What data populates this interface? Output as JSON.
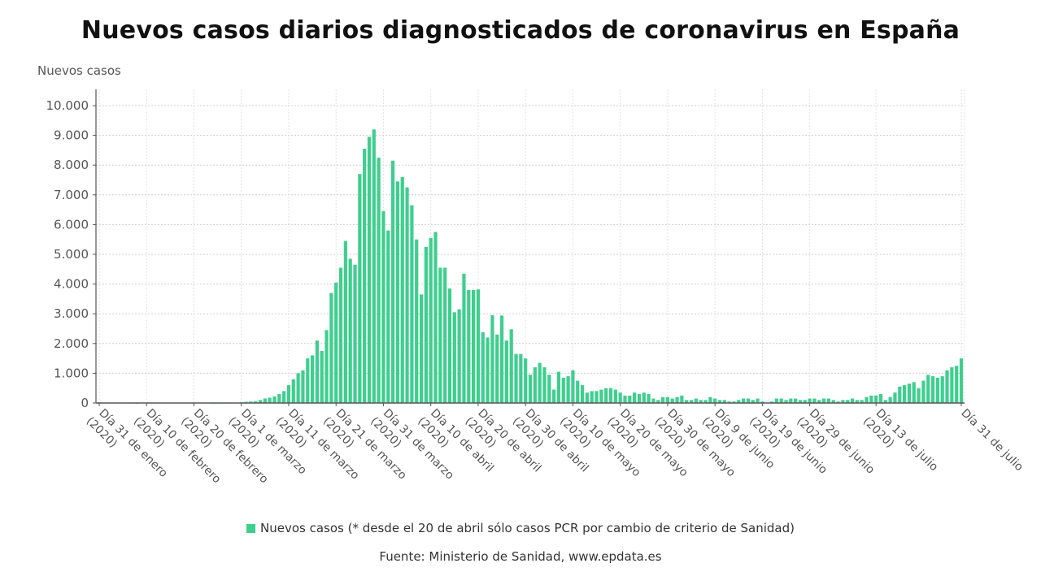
{
  "title": "Nuevos casos diarios diagnosticados de coronavirus en España",
  "y_axis_label": "Nuevos casos",
  "legend": {
    "label": "Nuevos casos (* desde el 20 de abril sólo casos PCR por cambio de criterio de Sanidad)",
    "color": "#3ecf8e"
  },
  "source": "Fuente: Ministerio de Sanidad, www.epdata.es",
  "chart_data": {
    "type": "bar",
    "title": "Nuevos casos diarios diagnosticados de coronavirus en España",
    "xlabel": "",
    "ylabel": "Nuevos casos",
    "ylim": [
      0,
      10000
    ],
    "yticks": [
      "0",
      "1.000",
      "2.000",
      "3.000",
      "4.000",
      "5.000",
      "6.000",
      "7.000",
      "8.000",
      "9.000",
      "10.000"
    ],
    "grid": true,
    "legend_position": "bottom",
    "start_date": "2020-01-31",
    "end_date": "2020-07-31",
    "x_tick_labels": [
      {
        "day": 0,
        "line1": "Día 31 de enero",
        "line2": "(2020)"
      },
      {
        "day": 10,
        "line1": "Día 10 de febrero",
        "line2": "(2020)"
      },
      {
        "day": 20,
        "line1": "Día 20 de febrero",
        "line2": "(2020)"
      },
      {
        "day": 30,
        "line1": "Día 1 de marzo",
        "line2": "(2020)"
      },
      {
        "day": 40,
        "line1": "Día 11 de marzo",
        "line2": "(2020)"
      },
      {
        "day": 50,
        "line1": "Día 21 de marzo",
        "line2": "(2020)"
      },
      {
        "day": 60,
        "line1": "Día 31 de marzo",
        "line2": "(2020)"
      },
      {
        "day": 70,
        "line1": "Día 10 de abril",
        "line2": "(2020)"
      },
      {
        "day": 80,
        "line1": "Día 20 de abril",
        "line2": "(2020)"
      },
      {
        "day": 90,
        "line1": "Día 30 de abril",
        "line2": "(2020)"
      },
      {
        "day": 100,
        "line1": "Día 10 de mayo",
        "line2": "(2020)"
      },
      {
        "day": 110,
        "line1": "Día 20 de mayo",
        "line2": "(2020)"
      },
      {
        "day": 120,
        "line1": "Día 30 de mayo",
        "line2": "(2020)"
      },
      {
        "day": 130,
        "line1": "Día 9 de junio",
        "line2": "(2020)"
      },
      {
        "day": 140,
        "line1": "Día 19 de junio",
        "line2": "(2020)"
      },
      {
        "day": 150,
        "line1": "Día 29 de junio",
        "line2": "(2020)"
      },
      {
        "day": 164,
        "line1": "Día 13 de julio",
        "line2": "(2020)"
      },
      {
        "day": 182,
        "line1": "Día 31 de julio",
        "line2": ""
      }
    ],
    "series": [
      {
        "name": "Nuevos casos",
        "values": [
          1,
          0,
          0,
          0,
          0,
          0,
          0,
          0,
          1,
          0,
          0,
          0,
          0,
          0,
          0,
          0,
          0,
          0,
          0,
          0,
          0,
          0,
          0,
          0,
          2,
          4,
          3,
          10,
          7,
          12,
          20,
          40,
          50,
          60,
          100,
          150,
          180,
          220,
          300,
          400,
          600,
          800,
          1000,
          1100,
          1500,
          1600,
          2100,
          1750,
          2450,
          3700,
          4050,
          4550,
          5450,
          4850,
          4650,
          7700,
          8550,
          8950,
          9200,
          8250,
          6450,
          5800,
          8150,
          7450,
          7600,
          7250,
          6650,
          5500,
          3650,
          5250,
          5550,
          5750,
          4550,
          4550,
          3850,
          3050,
          3150,
          4350,
          3800,
          3800,
          3820,
          2380,
          2200,
          2950,
          2300,
          2940,
          2100,
          2480,
          1650,
          1650,
          1500,
          950,
          1200,
          1350,
          1200,
          950,
          450,
          1050,
          850,
          900,
          1100,
          750,
          600,
          350,
          400,
          400,
          450,
          500,
          500,
          450,
          350,
          250,
          250,
          350,
          300,
          350,
          300,
          150,
          100,
          200,
          200,
          150,
          200,
          250,
          100,
          100,
          150,
          100,
          100,
          200,
          150,
          100,
          100,
          50,
          50,
          100,
          150,
          150,
          100,
          150,
          50,
          0,
          50,
          150,
          150,
          100,
          150,
          150,
          100,
          100,
          150,
          150,
          100,
          150,
          150,
          100,
          50,
          100,
          100,
          150,
          100,
          100,
          200,
          250,
          250,
          300,
          100,
          200,
          350,
          550,
          600,
          650,
          700,
          500,
          750,
          950,
          900,
          850,
          900,
          1100,
          1200,
          1250,
          1500
        ]
      }
    ]
  }
}
